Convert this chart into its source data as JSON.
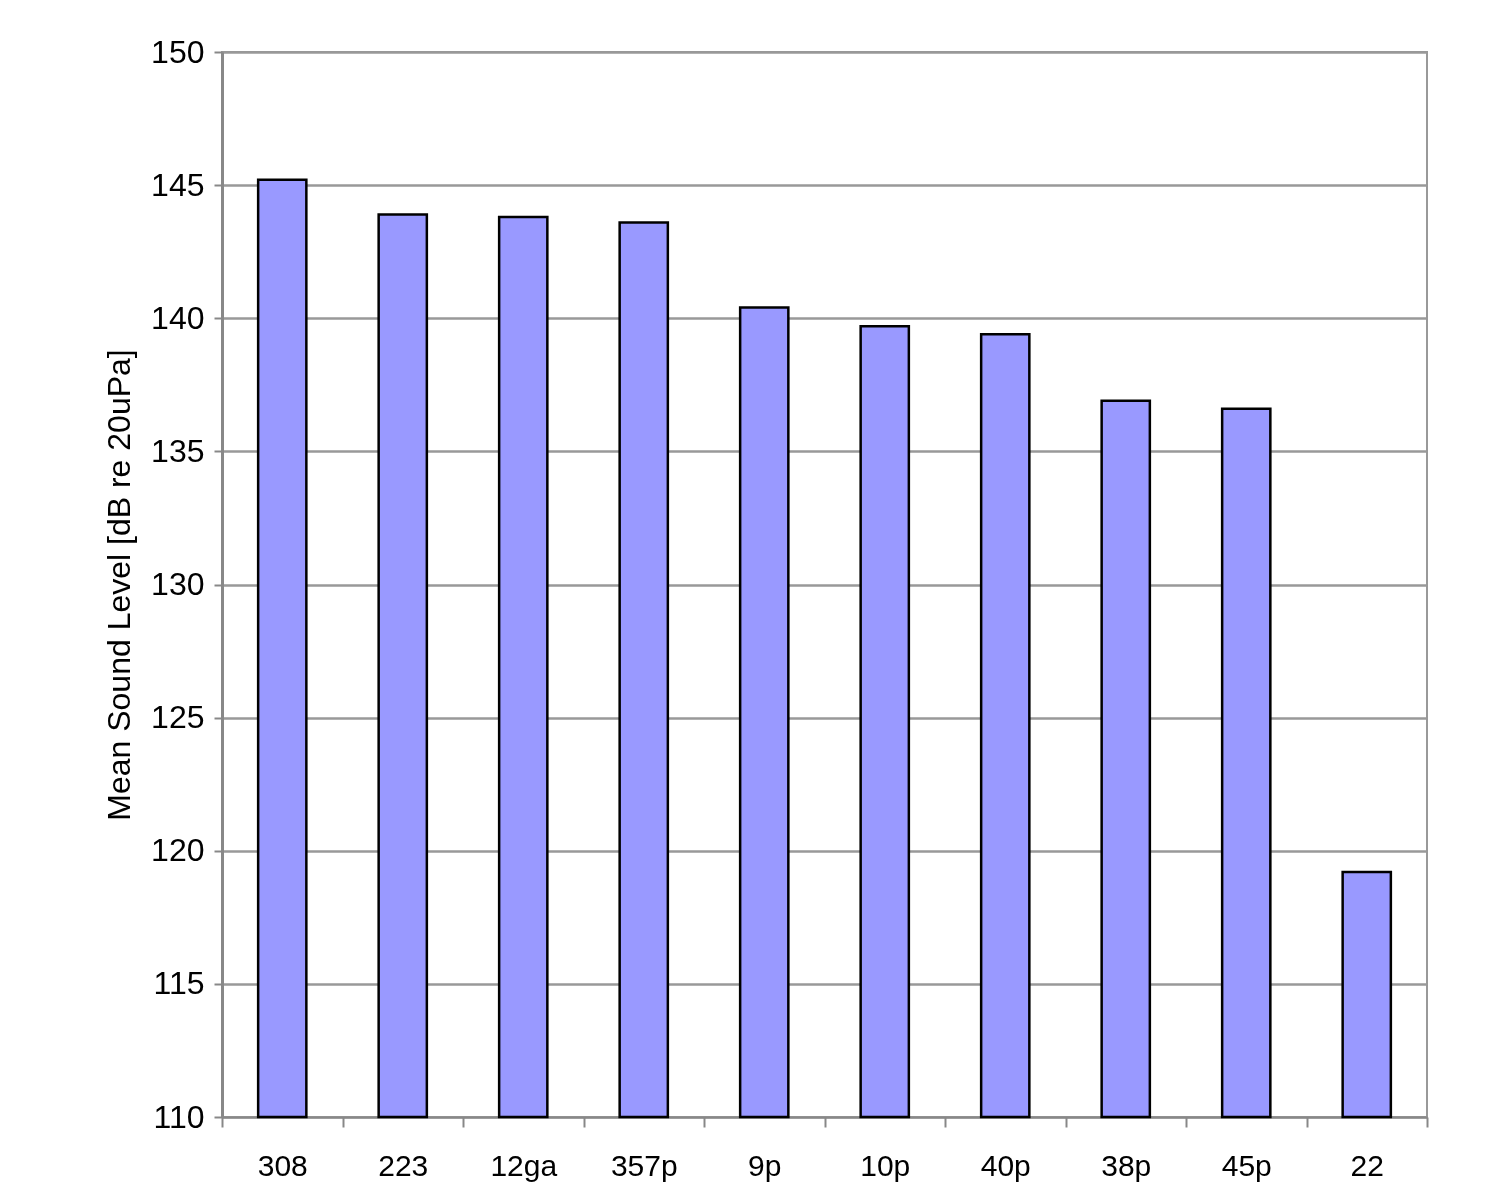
{
  "chart_data": {
    "type": "bar",
    "ylabel": "Mean Sound Level [dB re 20uPa]",
    "categories": [
      "308",
      "223",
      "12ga",
      "357p",
      "9p",
      "10p",
      "40p",
      "38p",
      "45p",
      "22"
    ],
    "values": [
      145.2,
      143.9,
      143.8,
      143.6,
      140.4,
      139.7,
      139.4,
      136.9,
      136.6,
      119.2
    ],
    "color": "#9999ff",
    "ylim": [
      110,
      150
    ],
    "yticks": [
      110,
      115,
      120,
      125,
      130,
      135,
      140,
      145,
      150
    ],
    "grid": "y"
  }
}
